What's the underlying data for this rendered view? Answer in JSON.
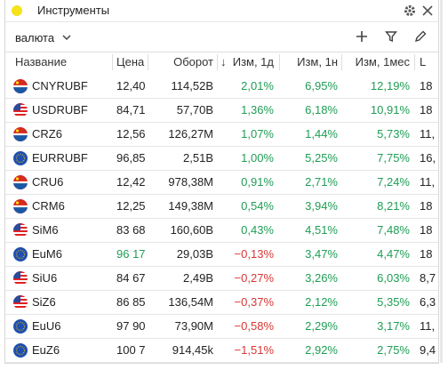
{
  "header": {
    "title": "Инструменты"
  },
  "filter": "валюта",
  "table": {
    "columns": [
      "Название",
      "Цена",
      "Оборот",
      "Изм, 1д",
      "Изм, 1н",
      "Изм, 1мес",
      "L"
    ],
    "rows": [
      [
        "CNYRUBF",
        "12,40",
        "114,52B",
        "2,01%",
        "6,95%",
        "12,19%",
        "18"
      ],
      [
        "USDRUBF",
        "84,71",
        "57,70B",
        "1,36%",
        "6,18%",
        "10,91%",
        "18"
      ],
      [
        "CRZ6",
        "12,56",
        "126,27M",
        "1,07%",
        "1,44%",
        "5,73%",
        "11,"
      ],
      [
        "EURRUBF",
        "96,85",
        "2,51B",
        "1,00%",
        "5,25%",
        "7,75%",
        "16,"
      ],
      [
        "CRU6",
        "12,42",
        "978,38M",
        "0,91%",
        "2,71%",
        "7,24%",
        "11,"
      ],
      [
        "CRM6",
        "12,25",
        "149,38M",
        "0,54%",
        "3,94%",
        "8,21%",
        "18"
      ],
      [
        "SiM6",
        "83 68",
        "160,60B",
        "0,43%",
        "4,51%",
        "7,48%",
        "18"
      ],
      [
        "EuM6",
        "96 17",
        "29,03B",
        "−0,13%",
        "3,47%",
        "4,47%",
        "18"
      ],
      [
        "SiU6",
        "84 67",
        "2,49B",
        "−0,27%",
        "3,26%",
        "6,03%",
        "8,7"
      ],
      [
        "SiZ6",
        "86 85",
        "136,54M",
        "−0,37%",
        "2,12%",
        "5,35%",
        "6,3"
      ],
      [
        "EuU6",
        "97 90",
        "73,90M",
        "−0,58%",
        "2,29%",
        "3,17%",
        "11,"
      ],
      [
        "EuZ6",
        "100 7",
        "914,45k",
        "−1,51%",
        "2,92%",
        "2,75%",
        "9,4"
      ]
    ]
  }
}
